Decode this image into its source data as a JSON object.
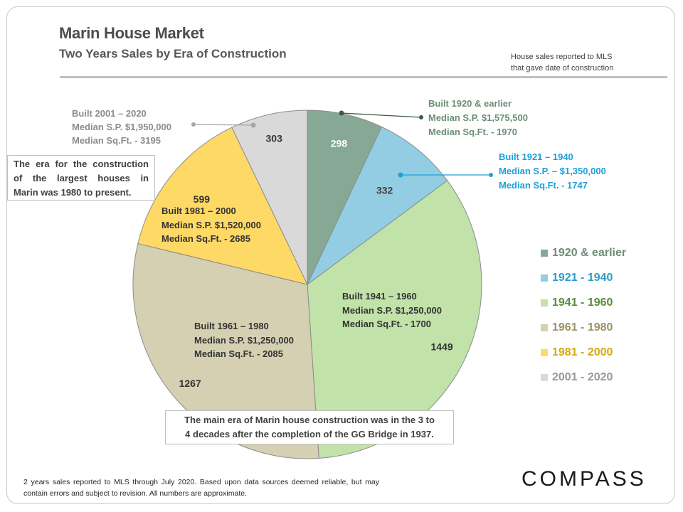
{
  "header": {
    "title": "Marin House Market",
    "subtitle": "Two Years Sales by Era of Construction",
    "note_line1": "House sales reported to MLS",
    "note_line2": "that gave date of construction"
  },
  "chart_data": {
    "type": "pie",
    "categories": [
      "1920 & earlier",
      "1921 - 1940",
      "1941 - 1960",
      "1961 - 1980",
      "1981 - 2000",
      "2001 - 2020"
    ],
    "values": [
      298,
      332,
      1449,
      1267,
      599,
      303
    ],
    "colors": [
      "#86a894",
      "#92cde3",
      "#c1e2a9",
      "#d4d0b1",
      "#ffd966",
      "#d9d9d9"
    ],
    "legend_colors": [
      "#6b8e77",
      "#2e9cc4",
      "#5b8a3c",
      "#9a9266",
      "#d4a90f",
      "#999999"
    ],
    "legend_position": "right",
    "callouts": [
      {
        "line1": "Built 1920 & earlier",
        "line2": "Median S.P. $1,575,500",
        "line3": "Median Sq.Ft. - 1970",
        "color": "#6b8e77"
      },
      {
        "line1": "Built 1921 – 1940",
        "line2": "Median S.P. – $1,350,000",
        "line3": "Median Sq.Ft. - 1747",
        "color": "#1ea0d8"
      },
      {
        "line1": "Built 1941 – 1960",
        "line2": "Median S.P. $1,250,000",
        "line3": "Median Sq.Ft. - 1700",
        "color": "#333333"
      },
      {
        "line1": "Built 1961 – 1980",
        "line2": "Median S.P. $1,250,000",
        "line3": "Median Sq.Ft. - 2085",
        "color": "#333333"
      },
      {
        "line1": "Built 1981 – 2000",
        "line2": "Median S.P. $1,520,000",
        "line3": "Median Sq.Ft. - 2685",
        "color": "#333333"
      },
      {
        "line1": "Built 2001 – 2020",
        "line2": "Median S.P. $1,950,000",
        "line3": "Median Sq.Ft. - 3195",
        "color": "#8c8c8c"
      }
    ]
  },
  "annotations": {
    "largest_houses_line1": "The era for the construction",
    "largest_houses_line2": "of the largest houses in",
    "largest_houses_line3": "Marin was 1980 to present.",
    "main_era_line1": "The main era of Marin house construction was in the 3 to",
    "main_era_line2": "4 decades after the completion of the GG Bridge in 1937."
  },
  "footer": {
    "disclaimer": "2 years sales reported to MLS through July 2020. Based upon data sources deemed reliable, but may contain errors and subject to revision. All numbers are approximate.",
    "brand": "COMPASS"
  }
}
